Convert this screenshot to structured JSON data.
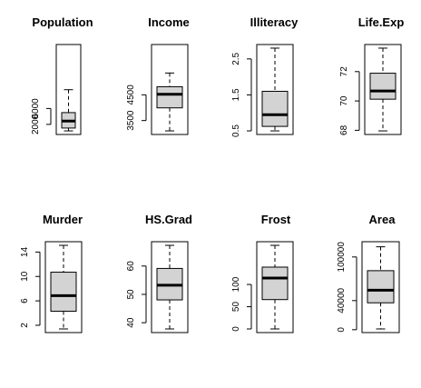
{
  "chart_data": [
    {
      "type": "box",
      "title": "Population",
      "ylim": [
        365,
        21198
      ],
      "five": {
        "min": 365,
        "q1": 1080,
        "median": 2838,
        "q3": 4968,
        "max": 10735
      },
      "ticks": [
        2000,
        6000
      ],
      "tick_labels": [
        "2000",
        "6000"
      ]
    },
    {
      "type": "box",
      "title": "Income",
      "ylim": [
        3098,
        6315
      ],
      "five": {
        "min": 3098,
        "q1": 3993,
        "median": 4519,
        "q3": 4815,
        "max": 5348
      },
      "ticks": [
        3500,
        4500
      ],
      "tick_labels": [
        "3500",
        "4500"
      ]
    },
    {
      "type": "box",
      "title": "Illiteracy",
      "ylim": [
        0.5,
        2.8
      ],
      "five": {
        "min": 0.5,
        "q1": 0.625,
        "median": 0.95,
        "q3": 1.6,
        "max": 2.8
      },
      "ticks": [
        0.5,
        1.5,
        2.5
      ],
      "tick_labels": [
        "0.5",
        "1.5",
        "2.5"
      ]
    },
    {
      "type": "box",
      "title": "Life.Exp",
      "ylim": [
        67.96,
        73.6
      ],
      "five": {
        "min": 67.96,
        "q1": 70.12,
        "median": 70.68,
        "q3": 71.89,
        "max": 73.6
      },
      "ticks": [
        68,
        70,
        72
      ],
      "tick_labels": [
        "68",
        "70",
        "72"
      ]
    },
    {
      "type": "box",
      "title": "Murder",
      "ylim": [
        1.4,
        15.1
      ],
      "five": {
        "min": 1.4,
        "q1": 4.3,
        "median": 6.85,
        "q3": 10.7,
        "max": 15.1
      },
      "ticks": [
        2,
        6,
        10,
        14
      ],
      "tick_labels": [
        "2",
        "6",
        "10",
        "14"
      ]
    },
    {
      "type": "box",
      "title": "HS.Grad",
      "ylim": [
        37.8,
        67.3
      ],
      "five": {
        "min": 37.8,
        "q1": 48.05,
        "median": 53.25,
        "q3": 59.15,
        "max": 67.3
      },
      "ticks": [
        40,
        50,
        60
      ],
      "tick_labels": [
        "40",
        "50",
        "60"
      ]
    },
    {
      "type": "box",
      "title": "Frost",
      "ylim": [
        0,
        188
      ],
      "five": {
        "min": 0,
        "q1": 66,
        "median": 114.5,
        "q3": 139,
        "max": 188
      },
      "ticks": [
        0,
        50,
        100
      ],
      "tick_labels": [
        "0",
        "50",
        "100"
      ]
    },
    {
      "type": "box",
      "title": "Area",
      "ylim": [
        1049,
        116000
      ],
      "five": {
        "min": 1049,
        "q1": 36985,
        "median": 54277,
        "q3": 81163,
        "max": 114000
      },
      "ticks": [
        0,
        40000,
        100000
      ],
      "tick_labels": [
        "0",
        "40000",
        "100000"
      ]
    }
  ]
}
